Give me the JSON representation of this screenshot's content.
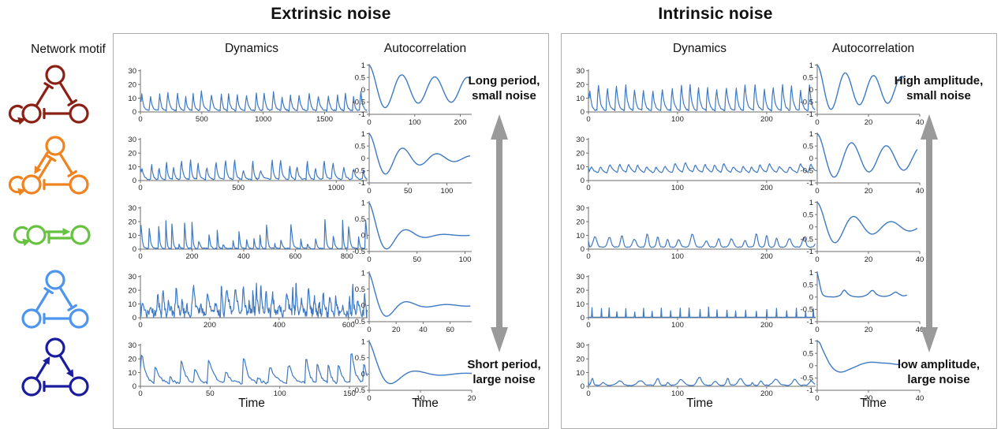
{
  "colors": {
    "line": "#3E79C3",
    "axis": "#6e6e6e",
    "arrow": "#9a9a9a",
    "panel_border": "#adadad",
    "text": "#111111"
  },
  "left_column": {
    "header": "Network motif"
  },
  "panels": [
    {
      "id": "extrinsic",
      "title": "Extrinsic noise",
      "dynamics_header": "Dynamics",
      "autocorr_header": "Autocorrelation",
      "time_label": "Time",
      "arrow_top_label": "Long period,\nsmall noise",
      "arrow_bottom_label": "Short period,\nlarge noise"
    },
    {
      "id": "intrinsic",
      "title": "Intrinsic noise",
      "dynamics_header": "Dynamics",
      "autocorr_header": "Autocorrelation",
      "time_label": "Time",
      "arrow_top_label": "High amplitude,\nsmall noise",
      "arrow_bottom_label": "low amplitude,\nlarge noise"
    }
  ],
  "motifs": [
    {
      "name": "repressilator-with-autoregulation",
      "color": "#8B2015",
      "layout": "triangle",
      "self_loop": "bl",
      "edges": [
        [
          "bl",
          "top",
          "rep",
          0
        ],
        [
          "top",
          "br",
          "rep",
          0
        ],
        [
          "br",
          "bl",
          "rep",
          0
        ]
      ]
    },
    {
      "name": "repressilator-with-autoregulation-and-activation",
      "color": "#F0831F",
      "layout": "triangle",
      "self_loop": "bl",
      "edges": [
        [
          "bl",
          "top",
          "rep",
          1
        ],
        [
          "top",
          "bl",
          "act",
          1
        ],
        [
          "top",
          "br",
          "rep",
          0
        ],
        [
          "br",
          "bl",
          "rep",
          0
        ]
      ]
    },
    {
      "name": "activator-inhibitor-two-node",
      "color": "#67C23F",
      "layout": "pair",
      "self_loop": "left",
      "edges": [
        [
          "left",
          "right",
          "act",
          -1
        ],
        [
          "right",
          "left",
          "rep",
          -1
        ]
      ]
    },
    {
      "name": "repressilator",
      "color": "#4D95EE",
      "layout": "triangle",
      "self_loop": null,
      "edges": [
        [
          "bl",
          "top",
          "rep",
          0
        ],
        [
          "top",
          "br",
          "rep",
          0
        ],
        [
          "br",
          "bl",
          "rep",
          0
        ]
      ]
    },
    {
      "name": "mixed-feedback-triangle",
      "color": "#1A1C9E",
      "layout": "triangle",
      "self_loop": null,
      "edges": [
        [
          "bl",
          "top",
          "act",
          0
        ],
        [
          "top",
          "br",
          "act",
          0
        ],
        [
          "br",
          "bl",
          "rep",
          0
        ]
      ]
    }
  ],
  "chart_data": [
    {
      "id": "ex-dyn-1",
      "panel": "Extrinsic noise",
      "row": 1,
      "kind": "dynamics",
      "type": "line",
      "xlabel": "Time",
      "xlim": [
        0,
        1850
      ],
      "ylim": [
        0,
        31
      ],
      "xticks": [
        0,
        500,
        1000,
        1500
      ],
      "yticks": [
        0,
        10,
        20,
        30
      ],
      "series": {
        "model": "pulses",
        "period": 70,
        "jitter": 0.22,
        "amp_min": 10,
        "amp_max": 15,
        "base": 1,
        "noise": 0.5,
        "rise": 0.16,
        "decay": 0.18,
        "seed": 11
      }
    },
    {
      "id": "ex-dyn-2",
      "panel": "Extrinsic noise",
      "row": 2,
      "kind": "dynamics",
      "type": "line",
      "xlabel": "Time",
      "xlim": [
        0,
        1160
      ],
      "ylim": [
        0,
        31
      ],
      "xticks": [
        0,
        500,
        1000
      ],
      "yticks": [
        0,
        10,
        20,
        30
      ],
      "series": {
        "model": "pulses",
        "period": 48,
        "jitter": 0.3,
        "amp_min": 7,
        "amp_max": 17,
        "base": 1,
        "noise": 0.5,
        "rise": 0.14,
        "decay": 0.16,
        "seed": 22
      }
    },
    {
      "id": "ex-dyn-3",
      "panel": "Extrinsic noise",
      "row": 3,
      "kind": "dynamics",
      "type": "line",
      "xlabel": "Time",
      "xlim": [
        0,
        880
      ],
      "ylim": [
        0,
        31
      ],
      "xticks": [
        0,
        200,
        400,
        600,
        800
      ],
      "yticks": [
        0,
        10,
        20,
        30
      ],
      "series": {
        "model": "pulses",
        "period": 30,
        "jitter": 0.35,
        "amp_min": 3,
        "amp_max": 26,
        "base": 0.5,
        "noise": 0.4,
        "rise": 0.1,
        "decay": 0.12,
        "seed": 33
      }
    },
    {
      "id": "ex-dyn-4",
      "panel": "Extrinsic noise",
      "row": 4,
      "kind": "dynamics",
      "type": "line",
      "xlabel": "Time",
      "xlim": [
        0,
        655
      ],
      "ylim": [
        0,
        31
      ],
      "xticks": [
        0,
        200,
        400,
        600
      ],
      "yticks": [
        0,
        10,
        20,
        30
      ],
      "series": {
        "model": "pulses",
        "period": 17,
        "jitter": 0.5,
        "amp_min": 7,
        "amp_max": 27,
        "base": 1,
        "noise": 3.2,
        "rise": 0.3,
        "decay": 0.3,
        "seed": 44
      }
    },
    {
      "id": "ex-dyn-5",
      "panel": "Extrinsic noise",
      "row": 5,
      "kind": "dynamics",
      "type": "line",
      "xlabel": "Time",
      "xlim": [
        0,
        163
      ],
      "ylim": [
        0,
        31
      ],
      "xticks": [
        0,
        50,
        100,
        150
      ],
      "yticks": [
        0,
        10,
        20,
        30
      ],
      "series": {
        "model": "pulses",
        "period": 10,
        "jitter": 0.35,
        "amp_min": 5,
        "amp_max": 27,
        "base": 2,
        "noise": 1,
        "rise": 0.1,
        "decay": 0.28,
        "seed": 55
      }
    },
    {
      "id": "ex-ac-1",
      "panel": "Extrinsic noise",
      "row": 1,
      "kind": "autocorrelation",
      "type": "line",
      "xlabel": "Time",
      "xlim": [
        0,
        225
      ],
      "ylim": [
        -1,
        1.05
      ],
      "xticks": [
        0,
        100,
        200
      ],
      "yticks": [
        1,
        0.5,
        0,
        -0.5,
        -1
      ],
      "series": {
        "model": "damped_cosine",
        "period": 72,
        "tau": 45,
        "floor": 0.5,
        "x_end": 220
      }
    },
    {
      "id": "ex-ac-2",
      "panel": "Extrinsic noise",
      "row": 2,
      "kind": "autocorrelation",
      "type": "line",
      "xlabel": "Time",
      "xlim": [
        0,
        132
      ],
      "ylim": [
        -1,
        1.05
      ],
      "xticks": [
        0,
        50,
        100
      ],
      "yticks": [
        1,
        0.5,
        0,
        -0.5,
        -1
      ],
      "series": {
        "model": "damped_cosine",
        "period": 44,
        "tau": 45,
        "floor": 0.05,
        "x_end": 130
      }
    },
    {
      "id": "ex-ac-3",
      "panel": "Extrinsic noise",
      "row": 3,
      "kind": "autocorrelation",
      "type": "line",
      "xlabel": "Time",
      "xlim": [
        0,
        107
      ],
      "ylim": [
        -0.5,
        1.05
      ],
      "xticks": [
        0,
        50,
        100
      ],
      "yticks": [
        1,
        0.5,
        0,
        -0.5
      ],
      "series": {
        "model": "damped_cosine",
        "period": 40,
        "tau": 22,
        "floor": 0,
        "x_end": 105
      }
    },
    {
      "id": "ex-ac-4",
      "panel": "Extrinsic noise",
      "row": 4,
      "kind": "autocorrelation",
      "type": "line",
      "xlabel": "Time",
      "xlim": [
        0,
        76
      ],
      "ylim": [
        -0.5,
        1.05
      ],
      "xticks": [
        0,
        20,
        40,
        60
      ],
      "yticks": [
        1,
        0.5,
        0,
        -0.5
      ],
      "series": {
        "model": "damped_cosine",
        "period": 29,
        "tau": 12,
        "floor": 0.02,
        "x_end": 75
      }
    },
    {
      "id": "ex-ac-5",
      "panel": "Extrinsic noise",
      "row": 5,
      "kind": "autocorrelation",
      "type": "line",
      "xlabel": "Time",
      "xlim": [
        0,
        20
      ],
      "ylim": [
        -0.5,
        1.05
      ],
      "xticks": [
        0,
        10,
        20
      ],
      "yticks": [
        1,
        0.5,
        0,
        -0.5
      ],
      "series": {
        "model": "damped_cosine",
        "period": 9.5,
        "tau": 3.5,
        "floor": 0.02,
        "x_end": 20
      }
    },
    {
      "id": "in-dyn-1",
      "panel": "Intrinsic noise",
      "row": 1,
      "kind": "dynamics",
      "type": "line",
      "xlabel": "Time",
      "xlim": [
        0,
        255
      ],
      "ylim": [
        0,
        31
      ],
      "xticks": [
        0,
        100,
        200
      ],
      "yticks": [
        0,
        10,
        20,
        30
      ],
      "series": {
        "model": "pulses",
        "period": 10.5,
        "jitter": 0.12,
        "amp_min": 16,
        "amp_max": 22,
        "base": 1,
        "noise": 0.5,
        "rise": 0.14,
        "decay": 0.2,
        "seed": 66
      }
    },
    {
      "id": "in-dyn-2",
      "panel": "Intrinsic noise",
      "row": 2,
      "kind": "dynamics",
      "type": "line",
      "xlabel": "Time",
      "xlim": [
        0,
        255
      ],
      "ylim": [
        0,
        31
      ],
      "xticks": [
        0,
        100,
        200
      ],
      "yticks": [
        0,
        10,
        20,
        30
      ],
      "series": {
        "model": "pulses",
        "period": 10.5,
        "jitter": 0.15,
        "amp_min": 5,
        "amp_max": 9,
        "base": 5,
        "noise": 0.3,
        "rise": 0.3,
        "decay": 0.38,
        "seed": 77
      }
    },
    {
      "id": "in-dyn-3",
      "panel": "Intrinsic noise",
      "row": 3,
      "kind": "dynamics",
      "type": "line",
      "xlabel": "Time",
      "xlim": [
        0,
        255
      ],
      "ylim": [
        0,
        31
      ],
      "xticks": [
        0,
        100,
        200
      ],
      "yticks": [
        0,
        10,
        20,
        30
      ],
      "series": {
        "model": "pulses",
        "shape": "bump",
        "width": 0.12,
        "period": 14,
        "jitter": 0.25,
        "amp_min": 3,
        "amp_max": 10,
        "base": 1.5,
        "noise": 0.25,
        "rise": 0.1,
        "decay": 0.12,
        "seed": 88
      }
    },
    {
      "id": "in-dyn-4",
      "panel": "Intrinsic noise",
      "row": 4,
      "kind": "dynamics",
      "type": "line",
      "xlabel": "Time",
      "xlim": [
        0,
        255
      ],
      "ylim": [
        0,
        31
      ],
      "xticks": [
        0,
        100,
        200
      ],
      "yticks": [
        0,
        10,
        20,
        30
      ],
      "series": {
        "model": "spikes",
        "period": 10.5,
        "jitter": 0.18,
        "h_min": 4,
        "h_max": 8,
        "base": 0.4,
        "seed": 99
      }
    },
    {
      "id": "in-dyn-5",
      "panel": "Intrinsic noise",
      "row": 5,
      "kind": "dynamics",
      "type": "line",
      "xlabel": "Time",
      "xlim": [
        0,
        255
      ],
      "ylim": [
        0,
        31
      ],
      "xticks": [
        0,
        100,
        200
      ],
      "yticks": [
        0,
        10,
        20,
        30
      ],
      "series": {
        "model": "pulses",
        "shape": "bump",
        "width": 0.13,
        "period": 16,
        "jitter": 0.55,
        "amp_min": 1.5,
        "amp_max": 6,
        "base": 0.8,
        "noise": 0.3,
        "rise": 0.1,
        "decay": 0.2,
        "seed": 101
      }
    },
    {
      "id": "in-ac-1",
      "panel": "Intrinsic noise",
      "row": 1,
      "kind": "autocorrelation",
      "type": "line",
      "xlabel": "Time",
      "xlim": [
        0,
        40
      ],
      "ylim": [
        -1,
        1.05
      ],
      "xticks": [
        0,
        20,
        40
      ],
      "yticks": [
        1,
        0.5,
        0,
        -0.5,
        -1
      ],
      "series": {
        "model": "damped_cosine",
        "period": 11,
        "tau": 10,
        "floor": 0.52,
        "x_end": 34
      }
    },
    {
      "id": "in-ac-2",
      "panel": "Intrinsic noise",
      "row": 2,
      "kind": "autocorrelation",
      "type": "line",
      "xlabel": "Time",
      "xlim": [
        0,
        40
      ],
      "ylim": [
        -1,
        1.05
      ],
      "xticks": [
        0,
        20,
        40
      ],
      "yticks": [
        1,
        0.5,
        0,
        -0.5,
        -1
      ],
      "series": {
        "model": "damped_cosine",
        "period": 13.5,
        "tau": 12,
        "floor": 0.45,
        "x_end": 39
      }
    },
    {
      "id": "in-ac-3",
      "panel": "Intrinsic noise",
      "row": 3,
      "kind": "autocorrelation",
      "type": "line",
      "xlabel": "Time",
      "xlim": [
        0,
        40
      ],
      "ylim": [
        -1,
        1.05
      ],
      "xticks": [
        0,
        20,
        40
      ],
      "yticks": [
        1,
        0.5,
        0,
        -0.5,
        -1
      ],
      "series": {
        "model": "damped_cosine",
        "period": 14.5,
        "tau": 14,
        "floor": 0.1,
        "x_end": 39
      }
    },
    {
      "id": "in-ac-4",
      "panel": "Intrinsic noise",
      "row": 4,
      "kind": "autocorrelation",
      "type": "line",
      "xlabel": "Time",
      "xlim": [
        0,
        40
      ],
      "ylim": [
        -1,
        1.05
      ],
      "xticks": [
        0,
        20,
        40
      ],
      "yticks": [
        1,
        0.5,
        0,
        -0.5,
        -1
      ],
      "series": {
        "model": "points",
        "points": [
          [
            0,
            1
          ],
          [
            0.8,
            0.62
          ],
          [
            1.8,
            0.18
          ],
          [
            3,
            0.04
          ],
          [
            5,
            0.01
          ],
          [
            7,
            0.01
          ],
          [
            9,
            0.08
          ],
          [
            10.5,
            0.28
          ],
          [
            12,
            0.13
          ],
          [
            13.5,
            0.04
          ],
          [
            15.5,
            0.01
          ],
          [
            17.5,
            0.02
          ],
          [
            19.5,
            0.1
          ],
          [
            21.5,
            0.27
          ],
          [
            23,
            0.13
          ],
          [
            24.5,
            0.05
          ],
          [
            26.5,
            0.03
          ],
          [
            28.5,
            0.08
          ],
          [
            30.5,
            0.2
          ],
          [
            32,
            0.12
          ],
          [
            33.5,
            0.05
          ],
          [
            35,
            0.08
          ]
        ]
      }
    },
    {
      "id": "in-ac-5",
      "panel": "Intrinsic noise",
      "row": 5,
      "kind": "autocorrelation",
      "type": "line",
      "xlabel": "Time",
      "xlim": [
        0,
        40
      ],
      "ylim": [
        -1,
        1.05
      ],
      "xticks": [
        0,
        20,
        40
      ],
      "yticks": [
        1,
        0.5,
        0,
        -0.5,
        -1
      ],
      "series": {
        "model": "points",
        "points": [
          [
            0,
            1
          ],
          [
            1,
            0.92
          ],
          [
            2,
            0.68
          ],
          [
            3.5,
            0.35
          ],
          [
            5,
            0.05
          ],
          [
            6.5,
            -0.14
          ],
          [
            8,
            -0.24
          ],
          [
            9.5,
            -0.26
          ],
          [
            11,
            -0.22
          ],
          [
            13,
            -0.13
          ],
          [
            15,
            -0.04
          ],
          [
            17,
            0.05
          ],
          [
            19,
            0.11
          ],
          [
            21,
            0.14
          ],
          [
            23,
            0.13
          ],
          [
            25,
            0.11
          ],
          [
            27,
            0.1
          ],
          [
            29,
            0.08
          ],
          [
            31,
            0.05
          ],
          [
            32.5,
            0.05
          ]
        ]
      }
    }
  ]
}
